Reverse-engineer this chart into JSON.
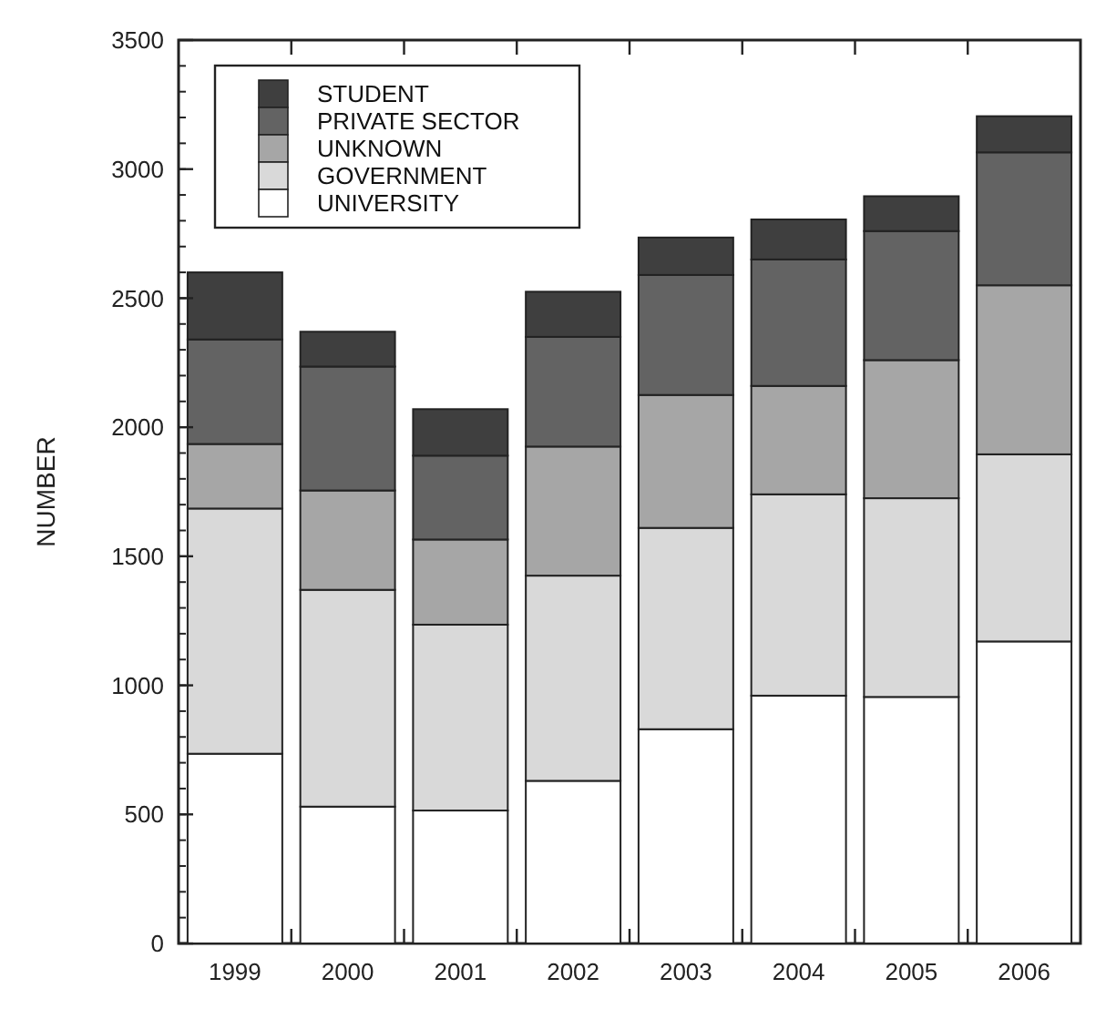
{
  "chart_data": {
    "type": "bar",
    "stacked": true,
    "ylabel": "NUMBER",
    "categories": [
      "1999",
      "2000",
      "2001",
      "2002",
      "2003",
      "2004",
      "2005",
      "2006"
    ],
    "series": [
      {
        "name": "UNIVERSITY",
        "color": "#ffffff",
        "values": [
          735,
          530,
          515,
          630,
          830,
          960,
          955,
          1170
        ]
      },
      {
        "name": "GOVERNMENT",
        "color": "#d9d9d9",
        "values": [
          950,
          840,
          720,
          795,
          780,
          780,
          770,
          725
        ]
      },
      {
        "name": "UNKNOWN",
        "color": "#a6a6a6",
        "values": [
          250,
          385,
          330,
          500,
          515,
          420,
          535,
          655
        ]
      },
      {
        "name": "PRIVATE SECTOR",
        "color": "#636363",
        "values": [
          405,
          480,
          325,
          425,
          465,
          490,
          500,
          515
        ]
      },
      {
        "name": "STUDENT",
        "color": "#3f3f3f",
        "values": [
          260,
          135,
          180,
          175,
          145,
          155,
          135,
          140
        ]
      }
    ],
    "ylim": [
      0,
      3500
    ],
    "yticks": [
      0,
      500,
      1000,
      1500,
      2000,
      2500,
      3000,
      3500
    ],
    "legend": "top left"
  }
}
